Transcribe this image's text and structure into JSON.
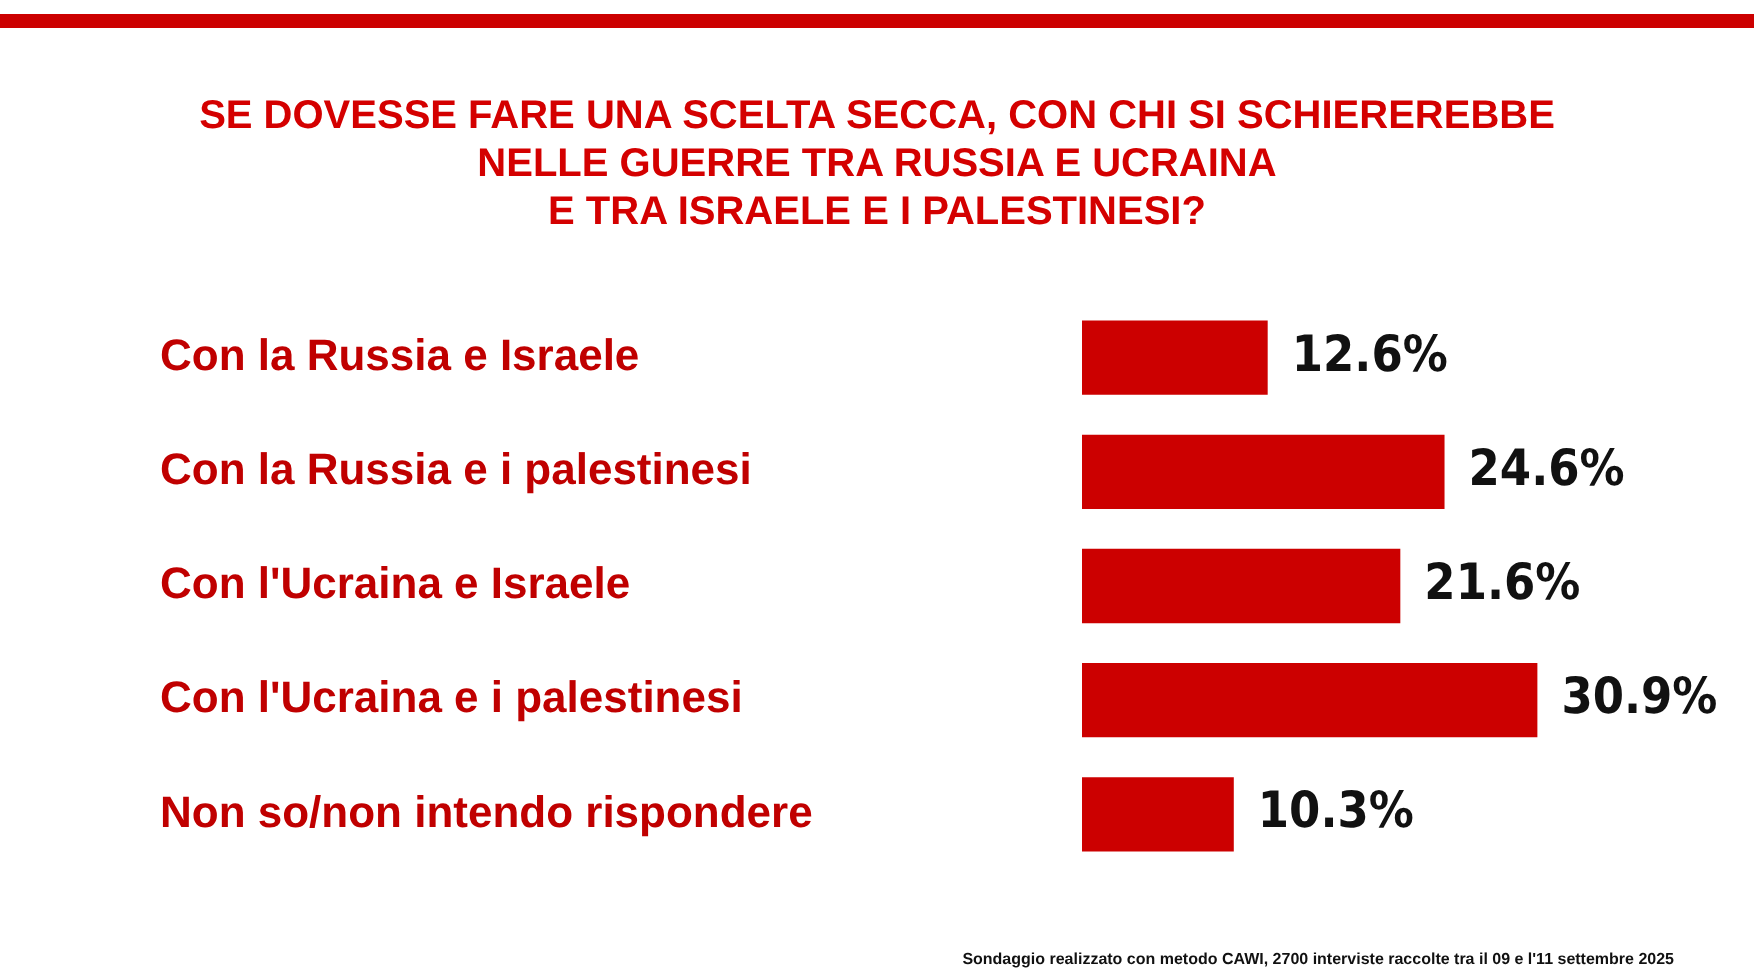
{
  "chart_data": {
    "type": "bar",
    "orientation": "horizontal",
    "title": "SE DOVESSE FARE UNA SCELTA SECCA, CON CHI SI SCHIEREREBBE\nNELLE GUERRE TRA RUSSIA E UCRAINA\nE TRA ISRAELE E I PALESTINESI?",
    "categories": [
      "Con la Russia e Israele",
      "Con la Russia e i palestinesi",
      "Con l'Ucraina e Israele",
      "Con l'Ucraina e i palestinesi",
      "Non so/non intendo rispondere"
    ],
    "values": [
      12.6,
      24.6,
      21.6,
      30.9,
      10.3
    ],
    "value_labels": [
      "12.6%",
      "24.6%",
      "21.6%",
      "30.9%",
      "10.3%"
    ],
    "color": "#cc0000",
    "grid": false,
    "legend": false,
    "annotations": [
      "Sondaggio realizzato con metodo CAWI, 2700 interviste raccolte tra il 09 e l'11 settembre 2025"
    ]
  }
}
